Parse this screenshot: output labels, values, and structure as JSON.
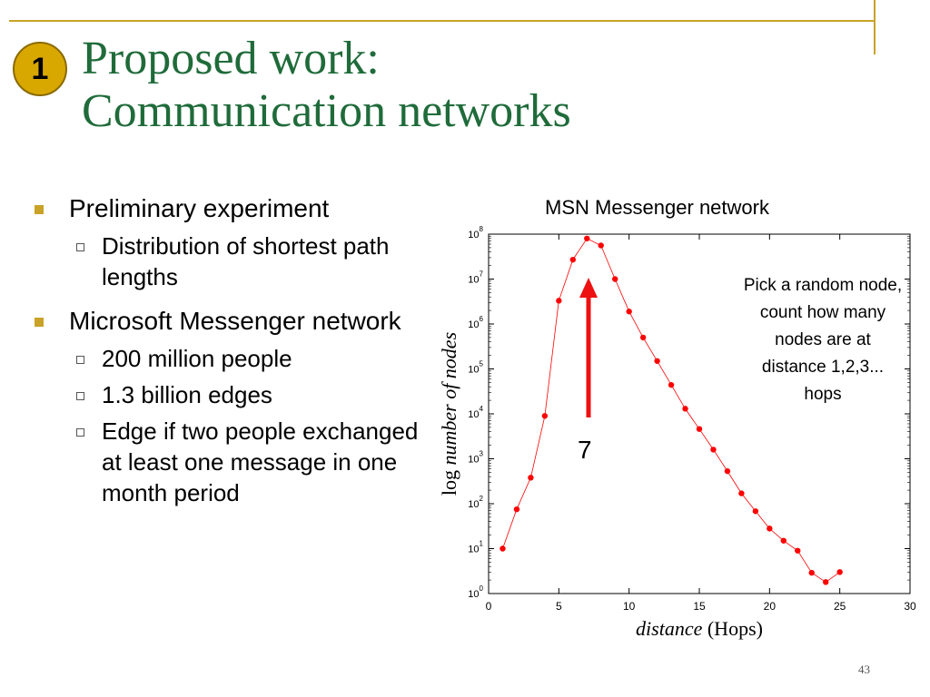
{
  "slide": {
    "badge": "1",
    "title_line1": "Proposed work:",
    "title_line2": "Communication networks",
    "page_number": "43"
  },
  "bullets": [
    {
      "text": "Preliminary experiment",
      "sub": [
        "Distribution of shortest path lengths"
      ]
    },
    {
      "text": "Microsoft Messenger network",
      "sub": [
        "200 million people",
        "1.3 billion edges",
        "Edge if two people exchanged at least one message in one month period"
      ]
    }
  ],
  "annotation": {
    "text": "Pick a random node, count how many nodes are at distance 1,2,3... hops",
    "peak_label": "7"
  },
  "colors": {
    "title": "#1f6b3a",
    "accent": "#c9a227",
    "series": "#ff0000",
    "arrow": "#ee1111"
  },
  "chart_data": {
    "type": "scatter",
    "title": "MSN Messenger network",
    "xlabel_italic": "distance",
    "xlabel_rest": " (Hops)",
    "ylabel_prefix": "log ",
    "ylabel_italic": "number of nodes",
    "xlim": [
      0,
      30
    ],
    "ylim": [
      1,
      100000000
    ],
    "yscale": "log",
    "xticks": [
      0,
      5,
      10,
      15,
      20,
      25,
      30
    ],
    "yticks": [
      1,
      10,
      100,
      1000,
      10000,
      100000,
      1000000,
      10000000,
      100000000
    ],
    "ytick_exponents": [
      "0",
      "1",
      "2",
      "3",
      "4",
      "5",
      "6",
      "7",
      "8"
    ],
    "grid": false,
    "series": [
      {
        "x": [
          1,
          2,
          3,
          4,
          5,
          6,
          7,
          8,
          9,
          10,
          11,
          12,
          13,
          14,
          15,
          16,
          17,
          18,
          19,
          20,
          21,
          22,
          23,
          24,
          25
        ],
        "y": [
          10,
          75,
          380,
          9000,
          3300000,
          27000000,
          80000000,
          56000000,
          10000000,
          1900000,
          500000,
          150000,
          44000,
          13000,
          4600,
          1600,
          530,
          170,
          68,
          28,
          15,
          9,
          2.9,
          1.8,
          3
        ]
      }
    ]
  }
}
